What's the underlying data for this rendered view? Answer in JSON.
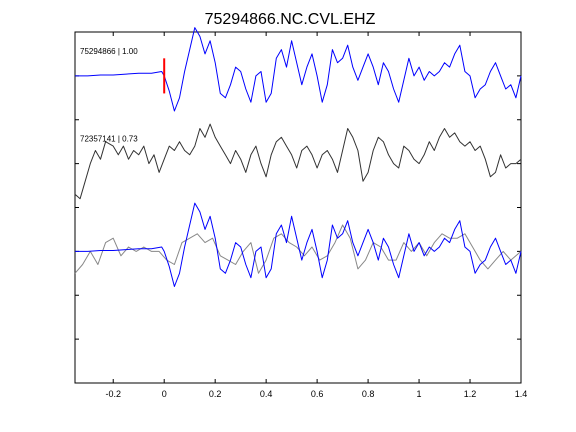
{
  "chart_data": {
    "type": "line",
    "title": "75294866.NC.CVL.EHZ",
    "xlabel": "",
    "ylabel": "",
    "xlim": [
      -0.35,
      1.4
    ],
    "x_ticks": [
      -0.2,
      0,
      0.2,
      0.4,
      0.6,
      0.8,
      1,
      1.2,
      1.4
    ],
    "x_tick_labels": [
      "-0.2",
      "0",
      "0.2",
      "0.4",
      "0.6",
      "0.8",
      "1",
      "1.2",
      "1.4"
    ],
    "ylim": [
      -7,
      1
    ],
    "y_ticks": [
      -6,
      -5,
      -4,
      -3,
      -2,
      -1,
      0,
      1
    ],
    "grid": false,
    "pick_time": 0,
    "colors": {
      "main": "#0000ff",
      "reference": "#333333",
      "overlay": "#888888",
      "pick": "#ff0000"
    },
    "traces": [
      {
        "label": "75294866 | 1.00",
        "color": "#0000ff",
        "offset": 0,
        "x": [
          -0.35,
          -0.3,
          -0.25,
          -0.2,
          -0.15,
          -0.1,
          -0.05,
          -0.01,
          0,
          0.02,
          0.04,
          0.06,
          0.08,
          0.1,
          0.12,
          0.14,
          0.16,
          0.18,
          0.2,
          0.22,
          0.24,
          0.26,
          0.28,
          0.3,
          0.32,
          0.34,
          0.36,
          0.38,
          0.4,
          0.42,
          0.44,
          0.46,
          0.48,
          0.5,
          0.52,
          0.54,
          0.56,
          0.58,
          0.6,
          0.62,
          0.64,
          0.66,
          0.68,
          0.7,
          0.72,
          0.74,
          0.76,
          0.78,
          0.8,
          0.82,
          0.84,
          0.86,
          0.88,
          0.9,
          0.92,
          0.94,
          0.96,
          0.98,
          1.0,
          1.02,
          1.04,
          1.06,
          1.08,
          1.1,
          1.12,
          1.14,
          1.16,
          1.18,
          1.2,
          1.22,
          1.24,
          1.26,
          1.28,
          1.3,
          1.32,
          1.34,
          1.36,
          1.38,
          1.4
        ],
        "y": [
          0.0,
          0.0,
          0.02,
          0.02,
          0.04,
          0.06,
          0.06,
          0.1,
          0.0,
          -0.35,
          -0.8,
          -0.5,
          0.1,
          0.6,
          1.1,
          0.9,
          0.5,
          0.8,
          0.3,
          -0.4,
          -0.5,
          -0.2,
          0.2,
          0.1,
          -0.3,
          -0.6,
          0.0,
          0.1,
          -0.6,
          -0.4,
          0.4,
          0.6,
          0.2,
          0.8,
          0.3,
          -0.2,
          0.2,
          0.5,
          0.0,
          -0.6,
          -0.2,
          0.6,
          0.3,
          0.4,
          0.7,
          0.2,
          -0.1,
          0.2,
          0.5,
          0.2,
          -0.2,
          0.3,
          0.1,
          -0.3,
          -0.6,
          -0.1,
          0.4,
          0.0,
          0.2,
          -0.1,
          0.1,
          0.0,
          0.1,
          0.3,
          0.2,
          0.5,
          0.7,
          0.1,
          0.0,
          -0.5,
          -0.3,
          -0.2,
          0.1,
          0.3,
          0.0,
          -0.3,
          -0.2,
          -0.5,
          0.0
        ]
      },
      {
        "label": "72357141 | 0.73",
        "color": "#333333",
        "offset": -2,
        "x": [
          -0.35,
          -0.33,
          -0.31,
          -0.29,
          -0.27,
          -0.25,
          -0.23,
          -0.2,
          -0.18,
          -0.16,
          -0.14,
          -0.12,
          -0.1,
          -0.08,
          -0.06,
          -0.04,
          -0.02,
          0.0,
          0.02,
          0.04,
          0.06,
          0.08,
          0.1,
          0.12,
          0.14,
          0.16,
          0.18,
          0.2,
          0.22,
          0.24,
          0.26,
          0.28,
          0.3,
          0.32,
          0.34,
          0.36,
          0.38,
          0.4,
          0.42,
          0.44,
          0.46,
          0.48,
          0.5,
          0.52,
          0.54,
          0.56,
          0.58,
          0.6,
          0.62,
          0.64,
          0.66,
          0.68,
          0.7,
          0.72,
          0.74,
          0.76,
          0.78,
          0.8,
          0.82,
          0.84,
          0.86,
          0.88,
          0.9,
          0.92,
          0.94,
          0.96,
          0.98,
          1.0,
          1.02,
          1.04,
          1.06,
          1.08,
          1.1,
          1.12,
          1.14,
          1.16,
          1.18,
          1.2,
          1.22,
          1.24,
          1.26,
          1.28,
          1.3,
          1.32,
          1.34,
          1.36,
          1.38,
          1.4
        ],
        "y": [
          -0.7,
          -0.8,
          -0.4,
          0.0,
          0.3,
          0.1,
          0.5,
          0.4,
          0.2,
          0.4,
          0.1,
          0.3,
          0.2,
          0.4,
          0.0,
          0.2,
          -0.2,
          0.1,
          0.4,
          0.3,
          0.5,
          0.3,
          0.2,
          0.4,
          0.8,
          0.6,
          0.9,
          0.6,
          0.4,
          0.2,
          0.0,
          0.3,
          0.1,
          -0.2,
          0.2,
          0.4,
          0.0,
          -0.3,
          0.2,
          0.5,
          0.6,
          0.4,
          0.2,
          -0.1,
          0.3,
          0.4,
          0.2,
          -0.1,
          0.2,
          0.3,
          0.1,
          -0.2,
          0.3,
          0.8,
          0.6,
          0.3,
          -0.4,
          -0.2,
          0.3,
          0.6,
          0.5,
          0.2,
          0.0,
          -0.1,
          0.4,
          0.3,
          0.1,
          0.0,
          0.2,
          0.5,
          0.3,
          0.6,
          0.8,
          0.6,
          0.7,
          0.5,
          0.4,
          0.5,
          0.3,
          0.4,
          0.1,
          -0.3,
          -0.2,
          0.2,
          -0.1,
          0.0,
          0.0,
          0.1
        ]
      },
      {
        "label": "",
        "color": "#888888",
        "offset": -4,
        "x": [
          -0.35,
          -0.32,
          -0.29,
          -0.26,
          -0.23,
          -0.2,
          -0.17,
          -0.14,
          -0.11,
          -0.08,
          -0.05,
          -0.02,
          0.01,
          0.04,
          0.07,
          0.1,
          0.13,
          0.16,
          0.19,
          0.22,
          0.25,
          0.28,
          0.31,
          0.34,
          0.37,
          0.4,
          0.43,
          0.46,
          0.49,
          0.52,
          0.55,
          0.58,
          0.61,
          0.64,
          0.67,
          0.7,
          0.73,
          0.76,
          0.79,
          0.82,
          0.85,
          0.88,
          0.91,
          0.94,
          0.97,
          1.0,
          1.03,
          1.06,
          1.09,
          1.12,
          1.15,
          1.18,
          1.21,
          1.24,
          1.27,
          1.3,
          1.33,
          1.36,
          1.4
        ],
        "y": [
          -0.5,
          -0.3,
          0.0,
          -0.3,
          0.2,
          0.3,
          -0.1,
          0.1,
          0.0,
          0.1,
          0.0,
          0.0,
          -0.2,
          -0.3,
          0.2,
          0.3,
          0.4,
          0.2,
          0.3,
          -0.1,
          -0.2,
          -0.3,
          0.0,
          0.2,
          -0.5,
          -0.2,
          0.3,
          0.4,
          0.2,
          0.1,
          -0.1,
          0.1,
          -0.2,
          -0.1,
          0.2,
          0.6,
          0.3,
          -0.4,
          -0.2,
          0.2,
          0.1,
          -0.2,
          -0.2,
          0.2,
          0.0,
          0.2,
          -0.1,
          0.2,
          0.4,
          0.3,
          0.3,
          0.4,
          0.1,
          -0.2,
          -0.4,
          -0.2,
          0.0,
          -0.2,
          0.0
        ]
      },
      {
        "label": "",
        "color": "#0000ff",
        "offset": -4,
        "x": [
          -0.35,
          -0.3,
          -0.25,
          -0.2,
          -0.15,
          -0.1,
          -0.05,
          -0.01,
          0,
          0.02,
          0.04,
          0.06,
          0.08,
          0.1,
          0.12,
          0.14,
          0.16,
          0.18,
          0.2,
          0.22,
          0.24,
          0.26,
          0.28,
          0.3,
          0.32,
          0.34,
          0.36,
          0.38,
          0.4,
          0.42,
          0.44,
          0.46,
          0.48,
          0.5,
          0.52,
          0.54,
          0.56,
          0.58,
          0.6,
          0.62,
          0.64,
          0.66,
          0.68,
          0.7,
          0.72,
          0.74,
          0.76,
          0.78,
          0.8,
          0.82,
          0.84,
          0.86,
          0.88,
          0.9,
          0.92,
          0.94,
          0.96,
          0.98,
          1.0,
          1.02,
          1.04,
          1.06,
          1.08,
          1.1,
          1.12,
          1.14,
          1.16,
          1.18,
          1.2,
          1.22,
          1.24,
          1.26,
          1.28,
          1.3,
          1.32,
          1.34,
          1.36,
          1.38,
          1.4
        ],
        "y": [
          0.0,
          0.0,
          0.02,
          0.02,
          0.04,
          0.06,
          0.06,
          0.1,
          0.0,
          -0.35,
          -0.8,
          -0.5,
          0.1,
          0.6,
          1.1,
          0.9,
          0.5,
          0.8,
          0.3,
          -0.4,
          -0.5,
          -0.2,
          0.2,
          0.1,
          -0.3,
          -0.6,
          0.0,
          0.1,
          -0.6,
          -0.4,
          0.4,
          0.6,
          0.2,
          0.8,
          0.3,
          -0.2,
          0.2,
          0.5,
          0.0,
          -0.6,
          -0.2,
          0.6,
          0.3,
          0.4,
          0.7,
          0.2,
          -0.1,
          0.2,
          0.5,
          0.2,
          -0.2,
          0.3,
          0.1,
          -0.3,
          -0.6,
          -0.1,
          0.4,
          0.0,
          0.2,
          -0.1,
          0.1,
          0.0,
          0.1,
          0.3,
          0.2,
          0.5,
          0.7,
          0.1,
          0.0,
          -0.5,
          -0.3,
          -0.2,
          0.1,
          0.3,
          0.0,
          -0.3,
          -0.2,
          -0.5,
          0.0
        ]
      }
    ]
  }
}
